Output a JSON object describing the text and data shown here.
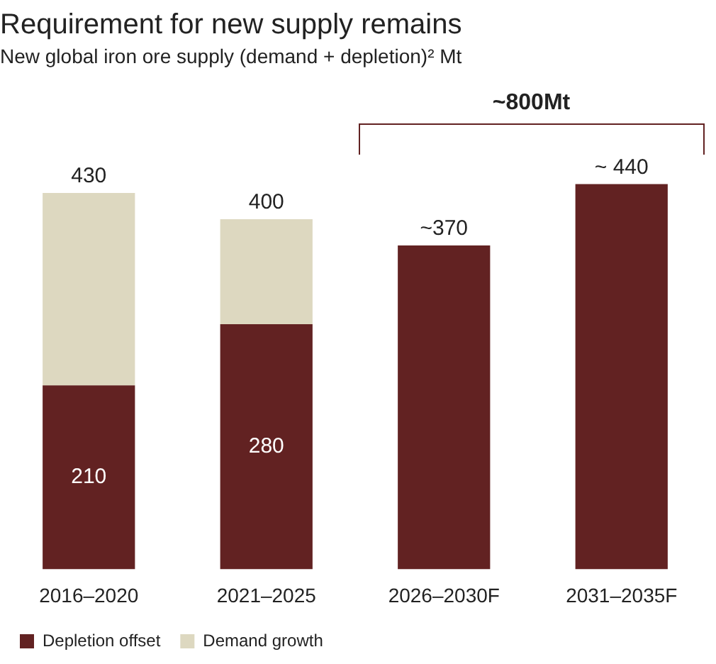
{
  "chart_data": {
    "type": "bar",
    "title": "Requirement for new supply remains",
    "subtitle": "New global iron ore supply (demand + depletion)² Mt",
    "categories": [
      "2016–2020",
      "2021–2025",
      "2026–2030F",
      "2031–2035F"
    ],
    "series": [
      {
        "name": "Depletion offset",
        "color": "#622222",
        "values": [
          210,
          280,
          370,
          440
        ],
        "value_labels": [
          "210",
          "280",
          null,
          null
        ]
      },
      {
        "name": "Demand growth",
        "color": "#ddd8c0",
        "values": [
          220,
          120,
          null,
          null
        ]
      }
    ],
    "stacked": true,
    "totals": [
      "430",
      "400",
      "~370",
      "~ 440"
    ],
    "annotations": [
      "~800Mt"
    ],
    "legend": "bottom"
  }
}
